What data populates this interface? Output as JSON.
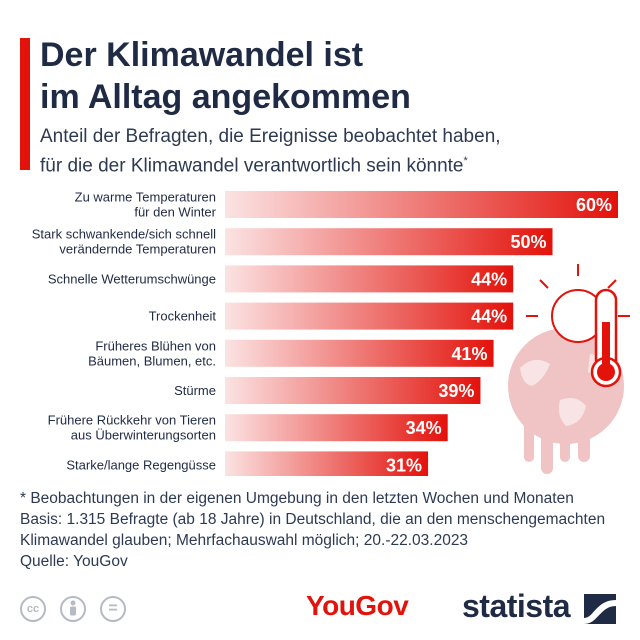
{
  "title_line1": "Der Klimawandel ist",
  "title_line2": "im Alltag angekommen",
  "subtitle_line1": "Anteil der Befragten, die Ereignisse beobachtet haben,",
  "subtitle_line2": "für die der Klimawandel verantwortlich sein könnte",
  "subtitle_mark": "*",
  "chart_data": {
    "type": "bar",
    "orientation": "horizontal",
    "categories": [
      [
        "Zu warme Temperaturen",
        "für den Winter"
      ],
      [
        "Stark schwankende/sich schnell",
        "verändernde Temperaturen"
      ],
      [
        "Schnelle Wetterumschwünge"
      ],
      [
        "Trockenheit"
      ],
      [
        "Früheres Blühen von",
        "Bäumen, Blumen, etc."
      ],
      [
        "Stürme"
      ],
      [
        "Frühere Rückkehr von Tieren",
        "aus Überwinterungsorten"
      ],
      [
        "Starke/lange Regengüsse"
      ]
    ],
    "values": [
      60,
      50,
      44,
      44,
      41,
      39,
      34,
      31
    ],
    "value_labels": [
      "60%",
      "50%",
      "44%",
      "44%",
      "41%",
      "39%",
      "34%",
      "31%"
    ],
    "unit": "%",
    "xlim": [
      0,
      60
    ],
    "grid": false,
    "bar_color_start": "#fbe3e3",
    "bar_color_end": "#e3120b"
  },
  "footnote": {
    "line1": "* Beobachtungen in der eigenen Umgebung in den letzten Wochen und Monaten",
    "line2": "Basis: 1.315 Befragte (ab 18 Jahre) in Deutschland, die an den menschengemachten",
    "line3": "Klimawandel glauben; Mehrfachauswahl möglich; 20.-22.03.2023",
    "line4": "Quelle: YouGov"
  },
  "footer": {
    "license_icons": [
      "cc-icon",
      "attribution-icon",
      "no-derivatives-icon"
    ],
    "cc_text": "cc",
    "nd_text": "=",
    "source_logo": "YouGov",
    "brand_logo": "statista"
  },
  "colors": {
    "accent": "#e3120b",
    "navy": "#1f2a44",
    "illustration": "#f0c4c4"
  },
  "icons": [
    "earth-melting-icon",
    "sun-icon",
    "thermometer-icon"
  ]
}
